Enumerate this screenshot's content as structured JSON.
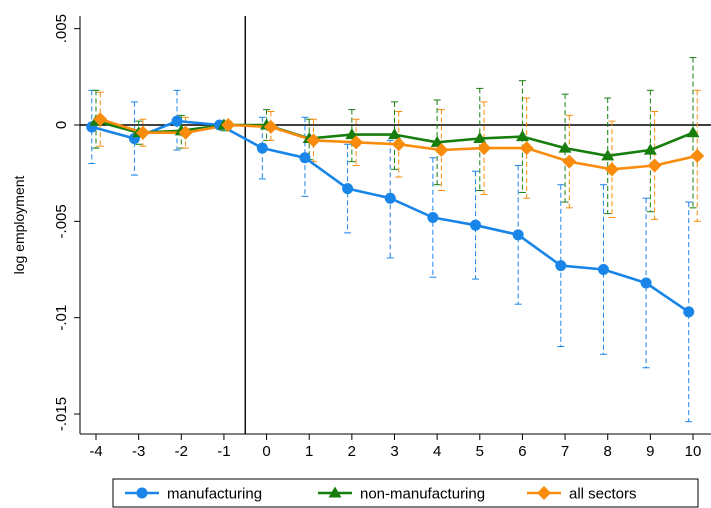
{
  "chart_data": {
    "type": "line",
    "ylabel": "log employment",
    "x": [
      -4,
      -3,
      -2,
      -1,
      0,
      1,
      2,
      3,
      4,
      5,
      6,
      7,
      8,
      9,
      10
    ],
    "x_ticks": [
      "-4",
      "-3",
      "-2",
      "-1",
      "0",
      "1",
      "2",
      "3",
      "4",
      "5",
      "6",
      "7",
      "8",
      "9",
      "10"
    ],
    "y_ticks": [
      {
        "value": 0.005,
        "label": ".005"
      },
      {
        "value": 0,
        "label": "0"
      },
      {
        "value": -0.005,
        "label": "-.005"
      },
      {
        "value": -0.01,
        "label": "-.01"
      },
      {
        "value": -0.015,
        "label": "-.015"
      }
    ],
    "ylim": [
      -0.0162,
      0.0058
    ],
    "xlim": [
      -4.3,
      10.2
    ],
    "vertical_line_x": -0.5,
    "horizontal_line_y": 0,
    "grid": false,
    "legend_position": "bottom",
    "series": [
      {
        "name": "manufacturing",
        "color": "#1a85e8",
        "marker": "circle",
        "offset": -0.1,
        "values": [
          -0.0001,
          -0.0007,
          0.0002,
          0.0,
          -0.0012,
          -0.0017,
          -0.0033,
          -0.0038,
          -0.0048,
          -0.0052,
          -0.0057,
          -0.0073,
          -0.0075,
          -0.0082,
          -0.0097
        ],
        "ci_low": [
          -0.002,
          -0.0026,
          -0.0013,
          -0.0002,
          -0.0028,
          -0.0037,
          -0.0056,
          -0.0069,
          -0.0079,
          -0.008,
          -0.0093,
          -0.0115,
          -0.0119,
          -0.0126,
          -0.0154
        ],
        "ci_high": [
          0.0018,
          0.0012,
          0.0018,
          0.0002,
          0.0004,
          0.0004,
          -0.001,
          -0.0008,
          -0.0017,
          -0.0024,
          -0.0021,
          -0.0031,
          -0.0031,
          -0.0038,
          -0.004
        ]
      },
      {
        "name": "non-manufacturing",
        "color": "#177e0e",
        "marker": "triangle",
        "offset": 0.0,
        "values": [
          0.0002,
          -0.0004,
          -0.0003,
          0.0,
          0.0,
          -0.0007,
          -0.0005,
          -0.0005,
          -0.0009,
          -0.0007,
          -0.0006,
          -0.0012,
          -0.0016,
          -0.0013,
          -0.0004
        ],
        "ci_low": [
          -0.0012,
          -0.001,
          -0.0012,
          -0.0003,
          -0.0008,
          -0.0018,
          -0.0019,
          -0.0023,
          -0.0031,
          -0.0034,
          -0.0035,
          -0.004,
          -0.0046,
          -0.0045,
          -0.0043
        ],
        "ci_high": [
          0.0018,
          0.0002,
          0.0005,
          0.0002,
          0.0008,
          0.0003,
          0.0008,
          0.0012,
          0.0013,
          0.0019,
          0.0023,
          0.0016,
          0.0014,
          0.0018,
          0.0035
        ]
      },
      {
        "name": "all sectors",
        "color": "#f98c0c",
        "marker": "diamond",
        "offset": 0.1,
        "values": [
          0.0003,
          -0.0004,
          -0.0004,
          0.0,
          -0.0001,
          -0.0008,
          -0.0009,
          -0.001,
          -0.0013,
          -0.0012,
          -0.0012,
          -0.0019,
          -0.0023,
          -0.0021,
          -0.0016
        ],
        "ci_low": [
          -0.0011,
          -0.0011,
          -0.0012,
          -0.0002,
          -0.0008,
          -0.0019,
          -0.0021,
          -0.0027,
          -0.0034,
          -0.0036,
          -0.0038,
          -0.0043,
          -0.0048,
          -0.0049,
          -0.005
        ],
        "ci_high": [
          0.0017,
          0.0003,
          0.0004,
          0.0002,
          0.0007,
          0.0003,
          0.0003,
          0.0007,
          0.0008,
          0.0012,
          0.0014,
          0.0005,
          0.0002,
          0.0007,
          0.0018
        ]
      }
    ]
  }
}
